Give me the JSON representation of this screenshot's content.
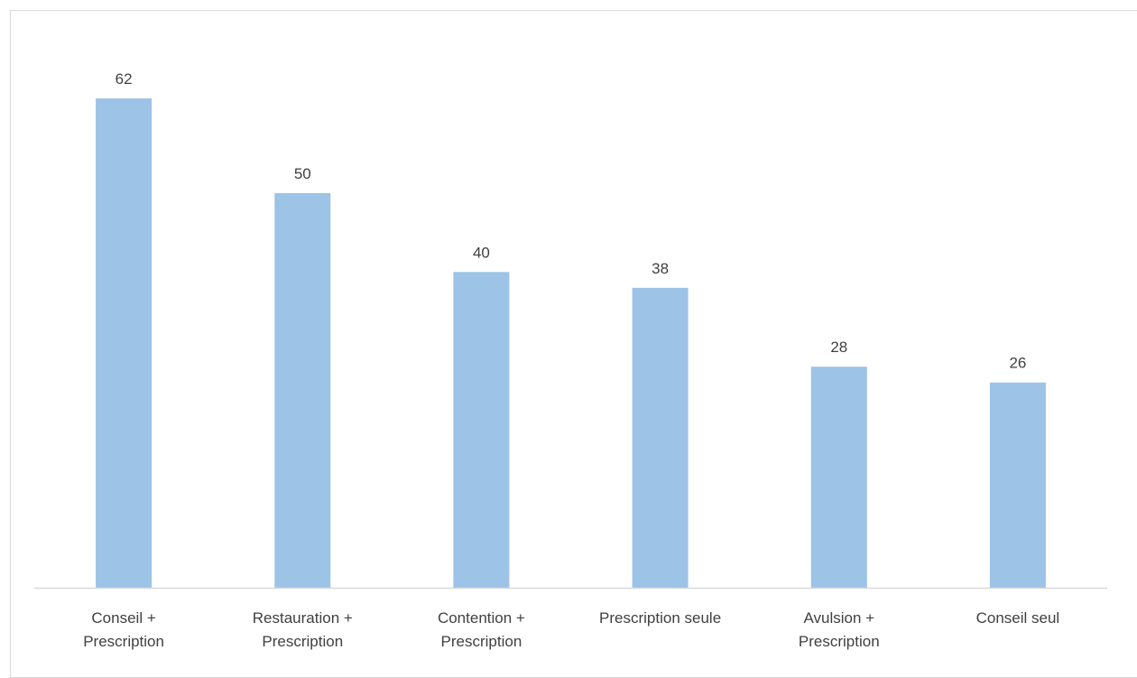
{
  "chart_data": {
    "type": "bar",
    "categories": [
      [
        "Conseil +",
        "Prescription"
      ],
      [
        "Restauration +",
        "Prescription"
      ],
      [
        "Contention +",
        "Prescription"
      ],
      [
        "Prescription seule"
      ],
      [
        "Avulsion +",
        "Prescription"
      ],
      [
        "Conseil seul"
      ]
    ],
    "values": [
      62,
      50,
      40,
      38,
      28,
      26
    ],
    "data_labels": [
      "62",
      "50",
      "40",
      "38",
      "28",
      "26"
    ],
    "ylim": [
      0,
      70
    ],
    "grid": false,
    "legend": "none",
    "colors": {
      "bar": "#9DC3E6",
      "axis": "#d9d9d9",
      "text": "#404040"
    }
  }
}
